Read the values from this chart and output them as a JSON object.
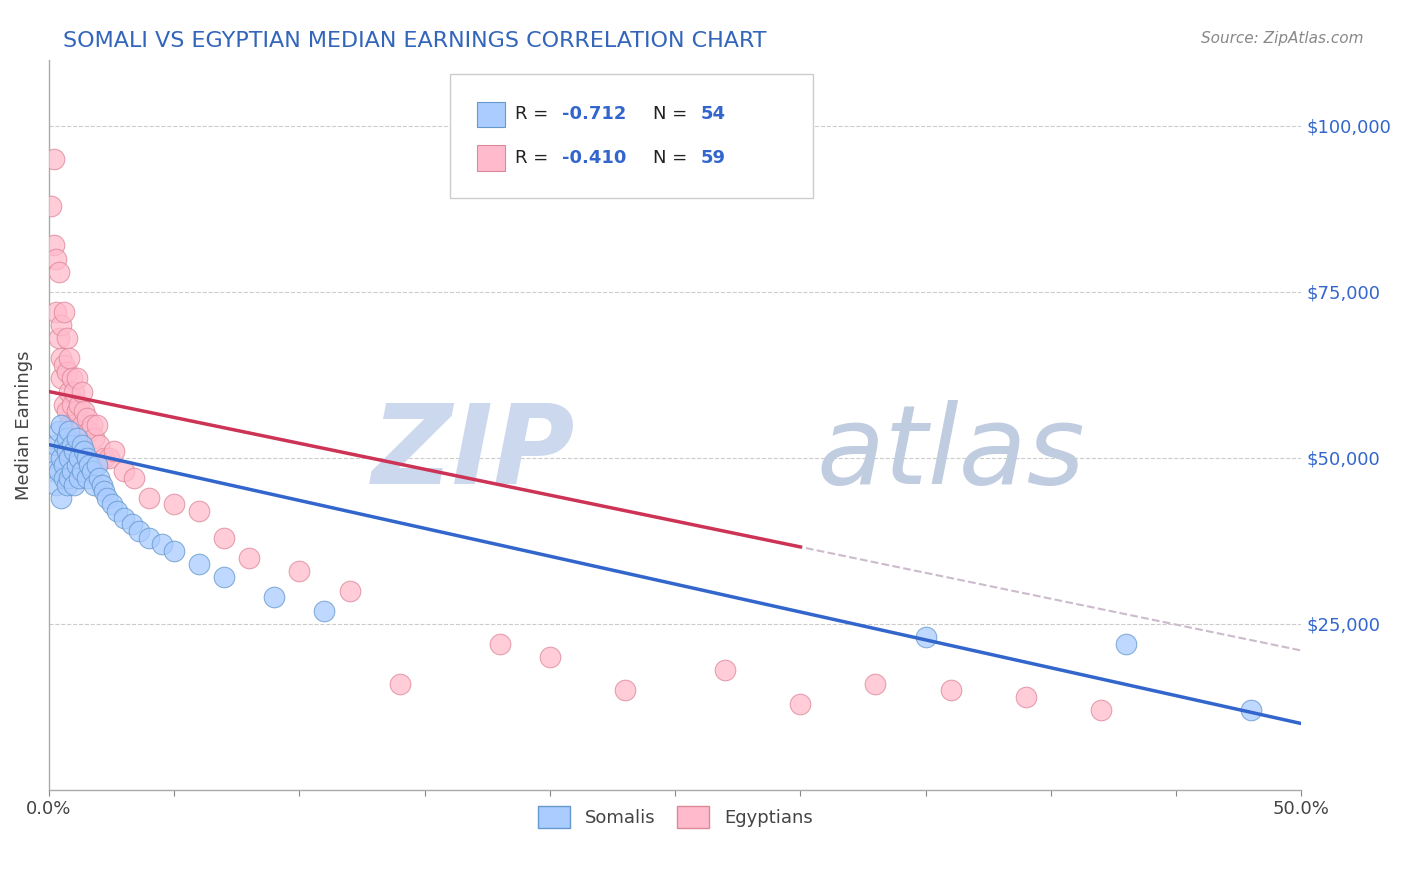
{
  "title": "SOMALI VS EGYPTIAN MEDIAN EARNINGS CORRELATION CHART",
  "title_color": "#3366bb",
  "source_text": "Source: ZipAtlas.com",
  "ylabel": "Median Earnings",
  "xlim": [
    0.0,
    0.5
  ],
  "ylim": [
    0,
    110000
  ],
  "yticks": [
    0,
    25000,
    50000,
    75000,
    100000
  ],
  "xticks": [
    0.0,
    0.05,
    0.1,
    0.15,
    0.2,
    0.25,
    0.3,
    0.35,
    0.4,
    0.45,
    0.5
  ],
  "xtick_labels": [
    "0.0%",
    "",
    "",
    "",
    "",
    "",
    "",
    "",
    "",
    "",
    "50.0%"
  ],
  "ytick_labels_right": [
    "",
    "$25,000",
    "$50,000",
    "$75,000",
    "$100,000"
  ],
  "somali_color": "#aaccff",
  "somali_edge": "#6699cc",
  "egyptian_color": "#ffbbcc",
  "egyptian_edge": "#dd8899",
  "somali_line_color": "#3366cc",
  "egyptian_line_color": "#cc3355",
  "dashed_line_color": "#ccbbcc",
  "watermark_zip_color": "#ccd8ee",
  "watermark_atlas_color": "#c0cce0",
  "legend_r1": "-0.712",
  "legend_n1": "54",
  "legend_r2": "-0.410",
  "legend_n2": "59",
  "somali_x": [
    0.001,
    0.002,
    0.003,
    0.003,
    0.004,
    0.004,
    0.005,
    0.005,
    0.005,
    0.006,
    0.006,
    0.006,
    0.007,
    0.007,
    0.007,
    0.008,
    0.008,
    0.008,
    0.009,
    0.009,
    0.01,
    0.01,
    0.011,
    0.011,
    0.012,
    0.012,
    0.013,
    0.013,
    0.014,
    0.015,
    0.015,
    0.016,
    0.017,
    0.018,
    0.019,
    0.02,
    0.021,
    0.022,
    0.023,
    0.025,
    0.027,
    0.03,
    0.033,
    0.036,
    0.04,
    0.045,
    0.05,
    0.06,
    0.07,
    0.09,
    0.11,
    0.35,
    0.43,
    0.48
  ],
  "somali_y": [
    50000,
    48000,
    52000,
    46000,
    54000,
    48000,
    55000,
    50000,
    44000,
    52000,
    49000,
    47000,
    53000,
    51000,
    46000,
    54000,
    50000,
    47000,
    52000,
    48000,
    51000,
    46000,
    53000,
    49000,
    50000,
    47000,
    52000,
    48000,
    51000,
    50000,
    47000,
    49000,
    48000,
    46000,
    49000,
    47000,
    46000,
    45000,
    44000,
    43000,
    42000,
    41000,
    40000,
    39000,
    38000,
    37000,
    36000,
    34000,
    32000,
    29000,
    27000,
    23000,
    22000,
    12000
  ],
  "egyptian_x": [
    0.001,
    0.002,
    0.002,
    0.003,
    0.003,
    0.004,
    0.004,
    0.005,
    0.005,
    0.005,
    0.006,
    0.006,
    0.006,
    0.007,
    0.007,
    0.007,
    0.008,
    0.008,
    0.008,
    0.009,
    0.009,
    0.009,
    0.01,
    0.01,
    0.011,
    0.011,
    0.012,
    0.012,
    0.013,
    0.013,
    0.014,
    0.015,
    0.016,
    0.017,
    0.018,
    0.019,
    0.02,
    0.022,
    0.024,
    0.026,
    0.03,
    0.034,
    0.04,
    0.05,
    0.06,
    0.07,
    0.08,
    0.1,
    0.12,
    0.14,
    0.18,
    0.2,
    0.23,
    0.27,
    0.3,
    0.33,
    0.36,
    0.39,
    0.42
  ],
  "egyptian_y": [
    88000,
    95000,
    82000,
    80000,
    72000,
    78000,
    68000,
    70000,
    65000,
    62000,
    72000,
    64000,
    58000,
    68000,
    63000,
    57000,
    65000,
    60000,
    55000,
    62000,
    58000,
    53000,
    60000,
    55000,
    62000,
    57000,
    58000,
    53000,
    60000,
    55000,
    57000,
    56000,
    54000,
    55000,
    53000,
    55000,
    52000,
    50000,
    50000,
    51000,
    48000,
    47000,
    44000,
    43000,
    42000,
    38000,
    35000,
    33000,
    30000,
    16000,
    22000,
    20000,
    15000,
    18000,
    13000,
    16000,
    15000,
    14000,
    12000
  ]
}
